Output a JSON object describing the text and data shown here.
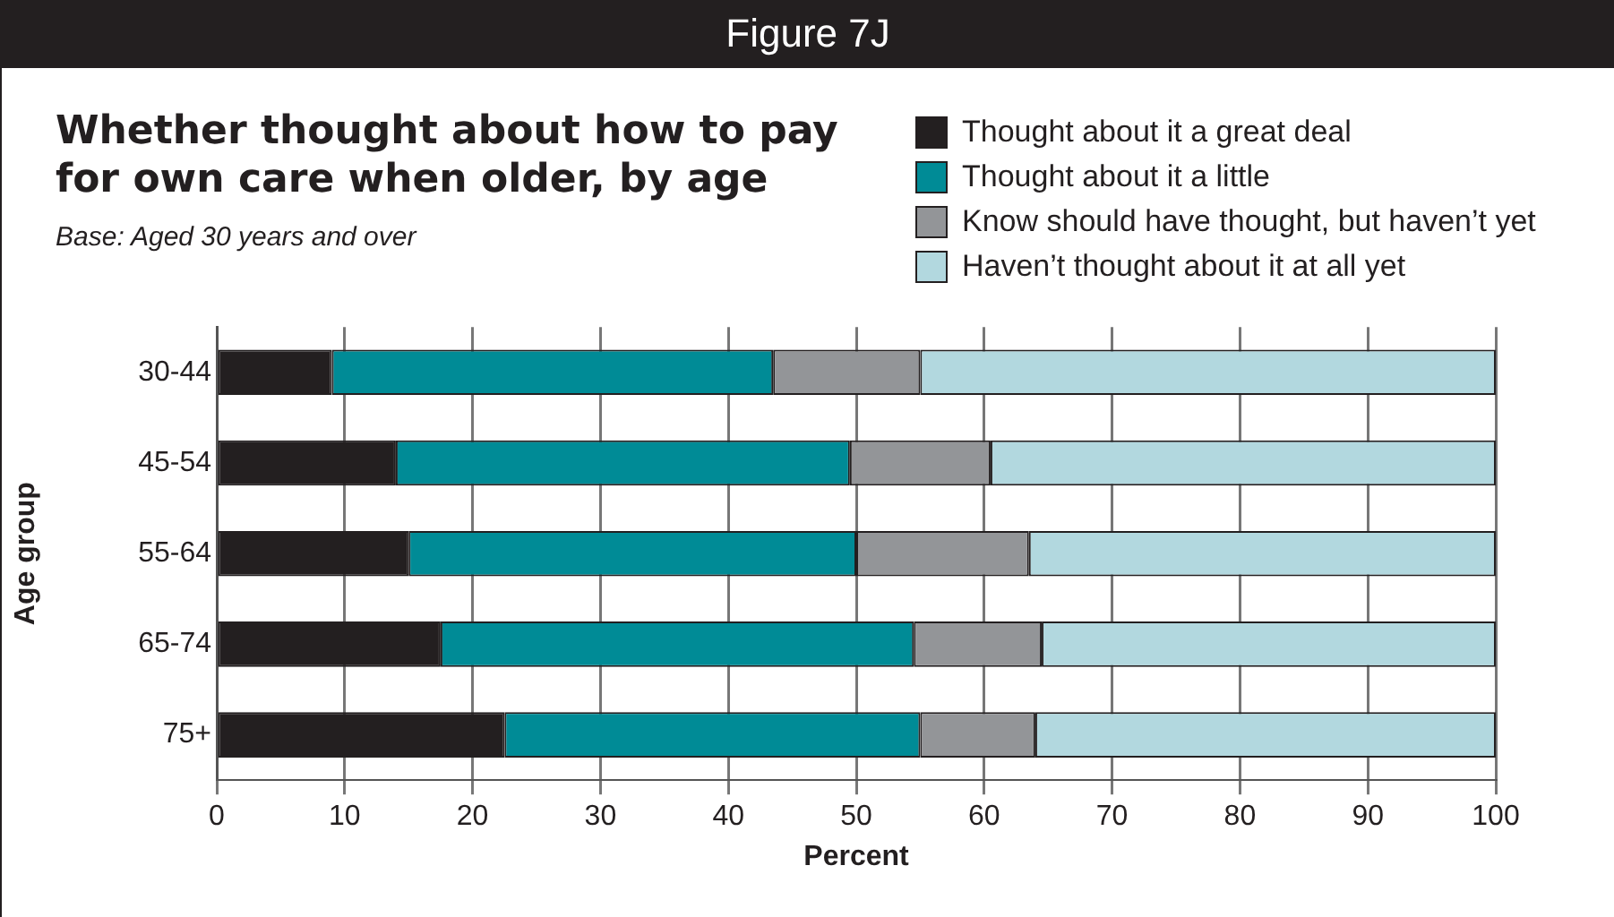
{
  "chart_data": {
    "type": "bar",
    "orientation": "horizontal",
    "stacked": true,
    "title": "Whether thought about how to pay for own care when older, by age",
    "subtitle": "Base: Aged 30 years and over",
    "annotations": [
      "Figure 7J"
    ],
    "xlabel": "Percent",
    "ylabel": "Age group",
    "categories": [
      "30-44",
      "45-54",
      "55-64",
      "65-74",
      "75+"
    ],
    "series": [
      {
        "name": "Thought about it a great deal",
        "color": "#231f20",
        "values": [
          9,
          14,
          15,
          17.5,
          22.5
        ]
      },
      {
        "name": "Thought about it a little",
        "color": "#008b96",
        "values": [
          34.5,
          35.5,
          35,
          37,
          32.5
        ]
      },
      {
        "name": "Know should have thought, but haven’t yet",
        "color": "#939598",
        "values": [
          11.5,
          11,
          13.5,
          10,
          9
        ]
      },
      {
        "name": "Haven’t thought about it at all yet",
        "color": "#b2d8df",
        "values": [
          45,
          39.5,
          36.5,
          35.5,
          36
        ]
      }
    ],
    "xlim": [
      0,
      100
    ],
    "xticks": [
      0,
      10,
      20,
      30,
      40,
      50,
      60,
      70,
      80,
      90,
      100
    ],
    "grid": "x",
    "legend": "top right"
  }
}
